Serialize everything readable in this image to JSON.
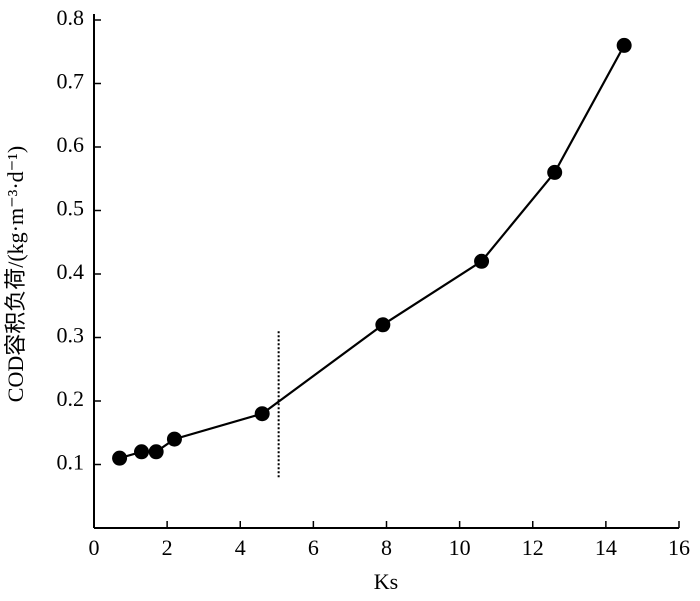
{
  "chart_data": {
    "type": "line",
    "x_label": "Ks",
    "y_label": "COD容积负荷/(kg·m⁻³·d⁻¹)",
    "x": [
      0.7,
      1.3,
      1.7,
      2.2,
      4.6,
      7.9,
      10.6,
      12.6,
      14.5
    ],
    "series": [
      {
        "color": "#000000",
        "values": [
          0.11,
          0.12,
          0.12,
          0.14,
          0.18,
          0.32,
          0.42,
          0.56,
          0.76
        ]
      }
    ],
    "xlim": [
      0,
      16
    ],
    "xticks": [
      0,
      2,
      4,
      6,
      8,
      10,
      12,
      14,
      16
    ],
    "ylim": [
      0,
      0.8
    ],
    "yticks": [
      0.1,
      0.2,
      0.3,
      0.4,
      0.5,
      0.6,
      0.7,
      0.8
    ],
    "reference_line": {
      "x": 5.05,
      "y": [
        0.08,
        0.31
      ]
    },
    "grid": false
  }
}
